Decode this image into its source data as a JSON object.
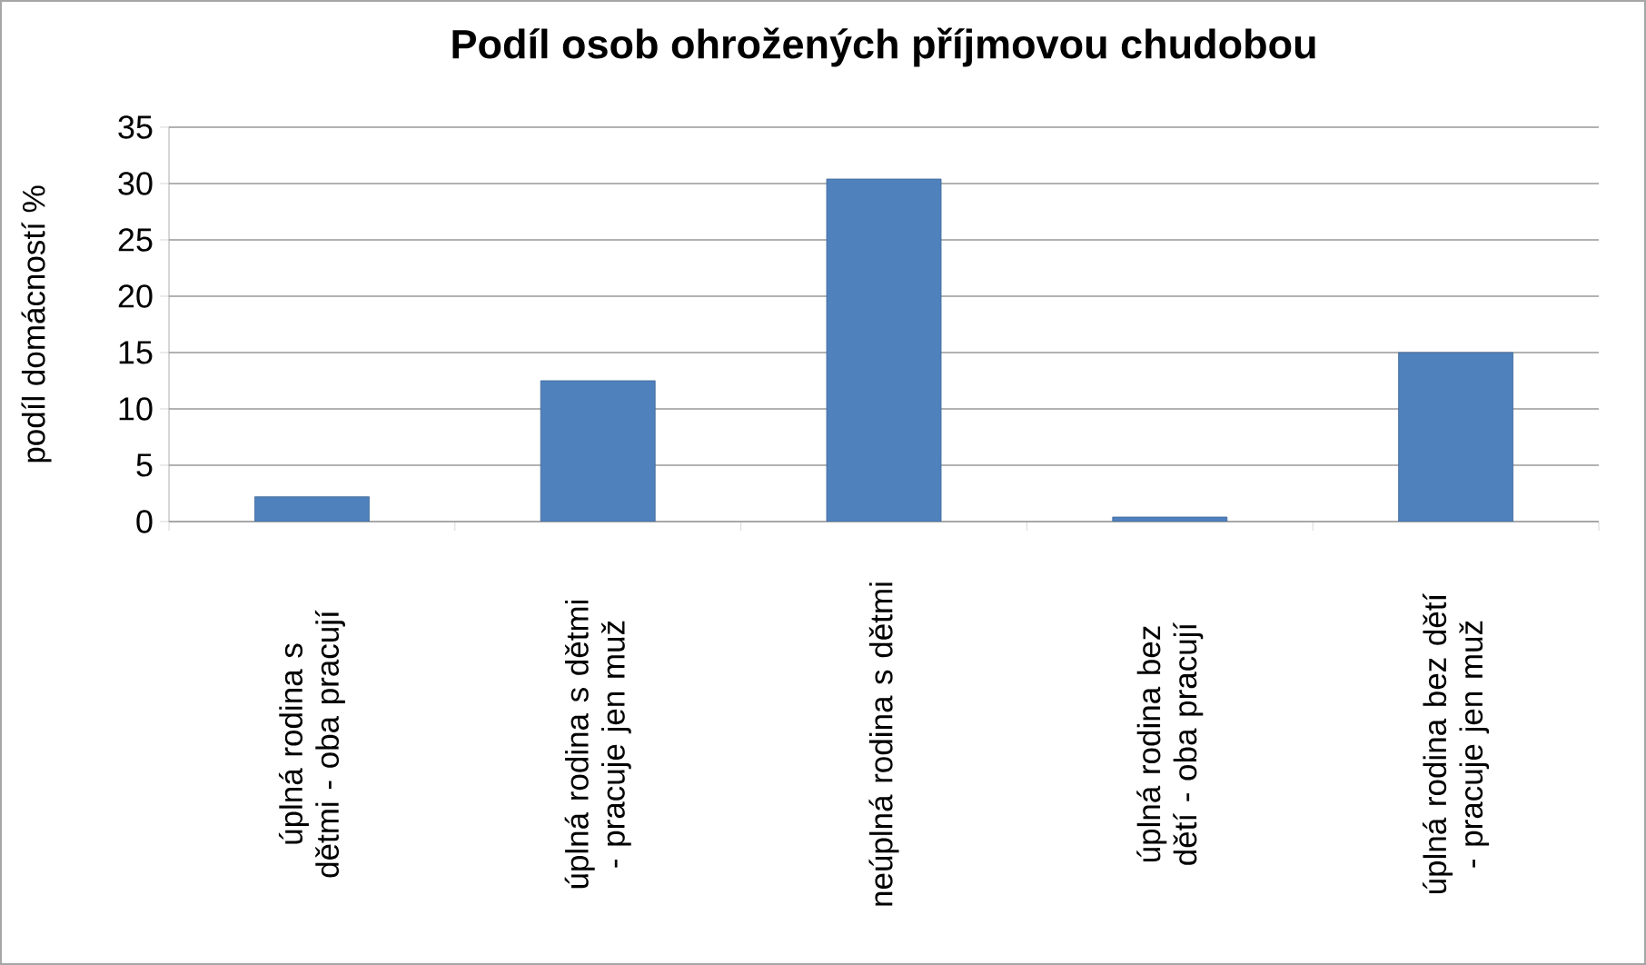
{
  "chart_data": {
    "type": "bar",
    "title": "Podíl osob ohrožených příjmovou chudobou",
    "ylabel": "podíl domácností %",
    "categories": [
      "úplná rodina s dětmi - oba pracují",
      "úplná rodina s dětmi - pracuje jen muž",
      "neúplná rodina s dětmi",
      "úplná rodina bez dětí - oba pracují",
      "úplná rodina bez dětí - pracuje jen muž"
    ],
    "values": [
      2.2,
      12.5,
      30.4,
      0.4,
      15.0
    ],
    "color": "#4f81bd",
    "ylim": [
      0,
      35
    ],
    "yticks": [
      0,
      5,
      10,
      15,
      20,
      25,
      30,
      35
    ],
    "grid": "y"
  }
}
